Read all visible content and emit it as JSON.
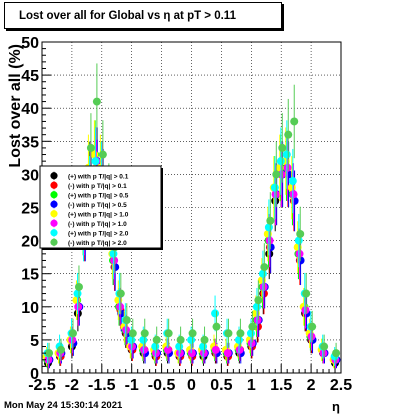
{
  "title": "Lost over all for Global vs   η at pT > 0.11",
  "timestamp": "Mon May 24 15:30:14 2021",
  "chart_data": {
    "type": "scatter",
    "xlabel": "η",
    "ylabel": "Lost over all (%)",
    "xlim": [
      -2.5,
      2.5
    ],
    "ylim": [
      0,
      50
    ],
    "x_ticks": [
      "-2.5",
      "-2",
      "-1.5",
      "-1",
      "-0.5",
      "0",
      "0.5",
      "1",
      "1.5",
      "2",
      "2.5"
    ],
    "y_ticks": [
      "0",
      "5",
      "10",
      "15",
      "20",
      "25",
      "30",
      "35",
      "40",
      "45",
      "50"
    ],
    "grid": true,
    "legend_position": "left-middle",
    "series": [
      {
        "name": "(+) with p T/|q| > 0.1",
        "color": "#000000",
        "x": [
          -2.4,
          -2.2,
          -2.0,
          -1.9,
          -1.8,
          -1.7,
          -1.6,
          -1.5,
          -1.4,
          -1.3,
          -1.2,
          -1.1,
          -1.0,
          -0.8,
          -0.6,
          -0.4,
          -0.2,
          0.0,
          0.2,
          0.4,
          0.6,
          0.8,
          1.0,
          1.1,
          1.2,
          1.3,
          1.4,
          1.5,
          1.6,
          1.7,
          1.8,
          1.9,
          2.0,
          2.2,
          2.4
        ],
        "y": [
          1.5,
          2.5,
          4,
          9,
          22,
          30,
          32,
          30,
          24,
          17,
          10,
          6,
          3.5,
          3,
          2.5,
          3,
          2.5,
          3,
          2.5,
          3,
          2.5,
          3,
          4,
          7,
          12,
          18,
          26,
          30,
          31,
          27,
          18,
          9,
          5,
          3,
          1.5
        ]
      },
      {
        "name": "(-) with p T/|q| > 0.1",
        "color": "#ff0000",
        "x": [
          -2.4,
          -2.2,
          -2.0,
          -1.9,
          -1.8,
          -1.7,
          -1.6,
          -1.5,
          -1.4,
          -1.3,
          -1.2,
          -1.1,
          -1.0,
          -0.8,
          -0.6,
          -0.4,
          -0.2,
          0.0,
          0.2,
          0.4,
          0.6,
          0.8,
          1.0,
          1.1,
          1.2,
          1.3,
          1.4,
          1.5,
          1.6,
          1.7,
          1.8,
          1.9,
          2.0,
          2.2,
          2.4
        ],
        "y": [
          2,
          2.5,
          4.5,
          10,
          21,
          29,
          31,
          29,
          23,
          16,
          9.5,
          6,
          3.5,
          3.5,
          2.5,
          3.5,
          2.5,
          2.5,
          3,
          3,
          2.5,
          3.5,
          4,
          7,
          12,
          19,
          27,
          30,
          30,
          26,
          17,
          9,
          5,
          3,
          2
        ]
      },
      {
        "name": "(+) with p T/|q| > 0.5",
        "color": "#00ff00",
        "x": [
          -2.4,
          -2.2,
          -2.0,
          -1.9,
          -1.8,
          -1.7,
          -1.6,
          -1.5,
          -1.4,
          -1.3,
          -1.2,
          -1.1,
          -1.0,
          -0.8,
          -0.6,
          -0.4,
          -0.2,
          0.0,
          0.2,
          0.4,
          0.6,
          0.8,
          1.0,
          1.1,
          1.2,
          1.3,
          1.4,
          1.5,
          1.6,
          1.7,
          1.8,
          1.9,
          2.0,
          2.2,
          2.4
        ],
        "y": [
          2,
          3,
          5,
          11,
          22,
          30,
          33,
          30,
          25,
          17,
          10,
          6.5,
          4,
          3.5,
          3,
          3.5,
          3,
          3,
          3,
          3.5,
          3,
          3.5,
          4.5,
          8,
          13,
          20,
          28,
          31,
          31,
          27,
          18,
          10,
          5.5,
          3.5,
          2
        ]
      },
      {
        "name": "(-) with p T/|q| > 0.5",
        "color": "#0000ff",
        "x": [
          -2.4,
          -2.2,
          -2.0,
          -1.9,
          -1.8,
          -1.7,
          -1.6,
          -1.5,
          -1.4,
          -1.3,
          -1.2,
          -1.1,
          -1.0,
          -0.8,
          -0.6,
          -0.4,
          -0.2,
          0.0,
          0.2,
          0.4,
          0.6,
          0.8,
          1.0,
          1.1,
          1.2,
          1.3,
          1.4,
          1.5,
          1.6,
          1.7,
          1.8,
          1.9,
          2.0,
          2.2,
          2.4
        ],
        "y": [
          2,
          3,
          4.5,
          10,
          21,
          29,
          32,
          29,
          24,
          16,
          9,
          6,
          4,
          3,
          3,
          3,
          3,
          3,
          3,
          3,
          3,
          3,
          4.5,
          8,
          13,
          19,
          27,
          30,
          30,
          26,
          17,
          9,
          5,
          3,
          2
        ]
      },
      {
        "name": "(+) with p T/|q| > 1.0",
        "color": "#ffff00",
        "x": [
          -2.4,
          -2.2,
          -2.0,
          -1.9,
          -1.8,
          -1.7,
          -1.6,
          -1.5,
          -1.4,
          -1.3,
          -1.2,
          -1.1,
          -1.0,
          -0.8,
          -0.6,
          -0.4,
          -0.2,
          0.0,
          0.2,
          0.4,
          0.6,
          0.8,
          1.0,
          1.1,
          1.2,
          1.3,
          1.4,
          1.5,
          1.6,
          1.7,
          1.8,
          1.9,
          2.0,
          2.2,
          2.4
        ],
        "y": [
          2.5,
          3,
          5,
          11,
          23,
          31,
          33,
          31,
          25,
          18,
          11,
          7,
          4,
          4,
          3.5,
          4,
          3,
          3.5,
          3.5,
          4,
          3.5,
          4,
          5,
          9,
          14,
          21,
          28,
          31,
          32,
          28,
          19,
          10,
          6,
          3.5,
          2
        ]
      },
      {
        "name": "(-) with p T/|q| > 1.0",
        "color": "#ff00ff",
        "x": [
          -2.4,
          -2.2,
          -2.0,
          -1.9,
          -1.8,
          -1.7,
          -1.6,
          -1.5,
          -1.4,
          -1.3,
          -1.2,
          -1.1,
          -1.0,
          -0.8,
          -0.6,
          -0.4,
          -0.2,
          0.0,
          0.2,
          0.4,
          0.6,
          0.8,
          1.0,
          1.1,
          1.2,
          1.3,
          1.4,
          1.5,
          1.6,
          1.7,
          1.8,
          1.9,
          2.0,
          2.2,
          2.4
        ],
        "y": [
          2,
          3,
          5,
          10,
          22,
          30,
          32,
          30,
          24,
          17,
          10,
          6.5,
          4,
          3.5,
          3,
          3.5,
          3,
          3,
          3,
          3.5,
          3,
          3.5,
          4.5,
          8,
          13,
          20,
          27,
          30,
          31,
          27,
          18,
          9.5,
          5.5,
          3,
          2
        ]
      },
      {
        "name": "(+) with p T/|q| > 2.0",
        "color": "#00ffff",
        "x": [
          -2.4,
          -2.2,
          -2.0,
          -1.9,
          -1.8,
          -1.7,
          -1.6,
          -1.5,
          -1.4,
          -1.3,
          -1.2,
          -1.1,
          -1.0,
          -0.8,
          -0.6,
          -0.4,
          -0.2,
          0.0,
          0.2,
          0.4,
          0.6,
          0.8,
          1.0,
          1.1,
          1.2,
          1.3,
          1.4,
          1.5,
          1.6,
          1.7,
          1.8,
          1.9,
          2.0,
          2.2,
          2.4
        ],
        "y": [
          3,
          4,
          6,
          12,
          21,
          28,
          32,
          30,
          26,
          18,
          12,
          8,
          5,
          5,
          4,
          6,
          4,
          5,
          4,
          9,
          6,
          5,
          6,
          10,
          15,
          22,
          28,
          32,
          33,
          29,
          20,
          12,
          7,
          4,
          2.5
        ]
      },
      {
        "name": "(-) with p T/|q| > 2.0",
        "color": "#55cc55",
        "x": [
          -2.4,
          -2.2,
          -2.0,
          -1.9,
          -1.8,
          -1.7,
          -1.6,
          -1.5,
          -1.4,
          -1.3,
          -1.2,
          -1.1,
          -1.0,
          -0.8,
          -0.6,
          -0.4,
          -0.2,
          0.0,
          0.2,
          0.4,
          0.6,
          0.8,
          1.0,
          1.1,
          1.2,
          1.3,
          1.4,
          1.5,
          1.6,
          1.7,
          1.8,
          1.9,
          2.0,
          2.2,
          2.4
        ],
        "y": [
          3,
          3.5,
          6,
          13,
          24,
          34,
          41,
          33,
          27,
          19,
          12,
          8,
          6,
          6,
          5,
          6,
          5,
          6,
          5,
          7,
          6,
          6,
          7,
          11,
          16,
          23,
          30,
          34,
          36,
          38,
          21,
          12,
          7,
          4,
          3
        ]
      }
    ]
  }
}
